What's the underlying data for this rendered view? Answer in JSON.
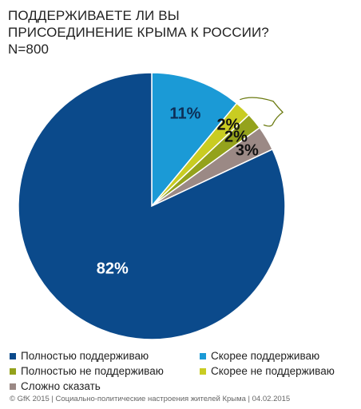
{
  "title_lines": [
    "ПОДДЕРЖИВАЕТЕ ЛИ ВЫ",
    "ПРИСОЕДИНЕНИЕ КРЫМА К РОССИИ?",
    "N=800"
  ],
  "chart_data": {
    "type": "pie",
    "title": "ПОДДЕРЖИВАЕТЕ ЛИ ВЫ ПРИСОЕДИНЕНИЕ КРЫМА К РОССИИ?",
    "subtitle": "N=800",
    "unit": "%",
    "slices": [
      {
        "name": "Полностью поддерживаю",
        "value": 82,
        "label": "82%",
        "color": "#0b4a8b"
      },
      {
        "name": "Скорее поддерживаю",
        "value": 11,
        "label": "11%",
        "color": "#1b9ad6"
      },
      {
        "name": "Скорее не поддерживаю",
        "value": 2,
        "label": "2%",
        "color": "#c9cc22"
      },
      {
        "name": "Полностью не поддерживаю",
        "value": 2,
        "label": "2%",
        "color": "#94a21c"
      },
      {
        "name": "Сложно сказать",
        "value": 3,
        "label": "3%",
        "color": "#9b8985"
      }
    ],
    "bracket_color": "#6b7a10",
    "legend_placement": "bottom"
  },
  "legend": [
    {
      "label": "Полностью поддерживаю",
      "color": "#0b4a8b"
    },
    {
      "label": "Скорее поддерживаю",
      "color": "#1b9ad6"
    },
    {
      "label": "Полностью не поддерживаю",
      "color": "#94a21c"
    },
    {
      "label": "Скорее не поддерживаю",
      "color": "#c9cc22"
    },
    {
      "label": "Сложно сказать",
      "color": "#9b8985"
    }
  ],
  "footer": "© GfK 2015 | Социально-политические настроения жителей Крыма | 04.02.2015"
}
